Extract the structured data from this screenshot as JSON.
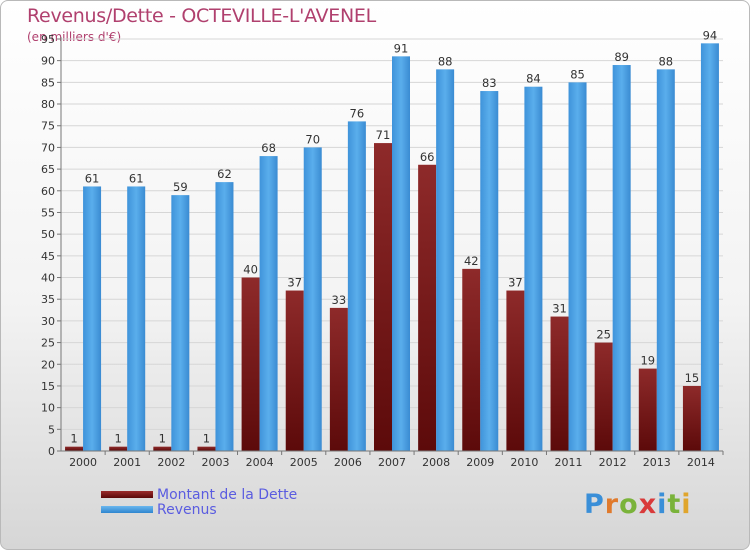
{
  "title": "Revenus/Dette - OCTEVILLE-L'AVENEL",
  "subtitle": "(en milliers d'€)",
  "legend": {
    "debt": "Montant de la Dette",
    "revenue": "Revenus"
  },
  "logo": {
    "text": "Proxiti",
    "colors": [
      "#3a8fd8",
      "#e07a2c",
      "#7ab33a",
      "#d93a3a",
      "#3a8fd8",
      "#7ab33a",
      "#e0a52c"
    ]
  },
  "colors": {
    "debt": "#7a1818",
    "revenue": "#4aa3e8",
    "title": "#b0406e",
    "legend_text": "#5a5ce0"
  },
  "chart_data": {
    "type": "bar",
    "categories": [
      "2000",
      "2001",
      "2002",
      "2003",
      "2004",
      "2005",
      "2006",
      "2007",
      "2008",
      "2009",
      "2010",
      "2011",
      "2012",
      "2013",
      "2014"
    ],
    "series": [
      {
        "name": "Montant de la Dette",
        "values": [
          1,
          1,
          1,
          1,
          40,
          37,
          33,
          71,
          66,
          42,
          37,
          31,
          25,
          19,
          15
        ]
      },
      {
        "name": "Revenus",
        "values": [
          61,
          61,
          59,
          62,
          68,
          70,
          76,
          91,
          88,
          83,
          84,
          85,
          89,
          88,
          94
        ]
      }
    ],
    "title": "Revenus/Dette - OCTEVILLE-L'AVENEL",
    "ylim": [
      0,
      95
    ],
    "ytick_step": 5,
    "grid": true,
    "legend_position": "bottom-left"
  }
}
